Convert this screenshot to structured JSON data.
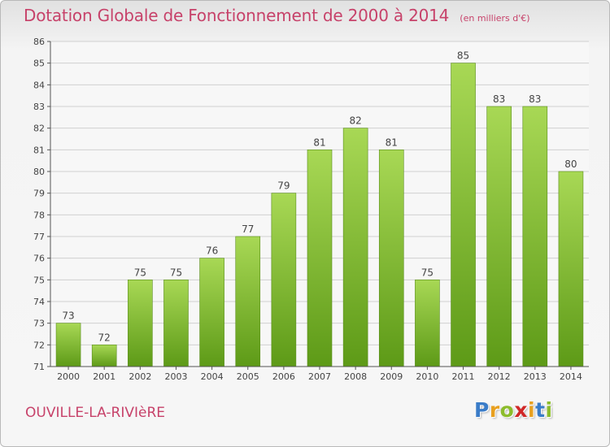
{
  "colors": {
    "bar_top": "#a8d855",
    "bar_bottom": "#5d9a17",
    "title": "#c7426a",
    "axis": "#555555",
    "grid": "#d0d0d0"
  },
  "header": {
    "title": "Dotation Globale de Fonctionnement de 2000 à 2014",
    "subtitle": "(en milliers d'€)"
  },
  "footer": {
    "place": "OUVILLE-LA-RIVIèRE",
    "brand": {
      "name": "Proxiti",
      "letters": [
        "P",
        "r",
        "o",
        "x",
        "i",
        "t",
        "i"
      ],
      "letter_colors": [
        "#3a7cc8",
        "#e8a020",
        "#8cbc2c",
        "#d02828",
        "#e8a020",
        "#3a7cc8",
        "#8cbc2c"
      ]
    }
  },
  "chart_data": {
    "type": "bar",
    "categories": [
      "2000",
      "2001",
      "2002",
      "2003",
      "2004",
      "2005",
      "2006",
      "2007",
      "2008",
      "2009",
      "2010",
      "2011",
      "2012",
      "2013",
      "2014"
    ],
    "values": [
      73,
      72,
      75,
      75,
      76,
      77,
      79,
      81,
      82,
      81,
      75,
      85,
      83,
      83,
      80
    ],
    "title": "Dotation Globale de Fonctionnement de 2000 à 2014",
    "subtitle": "(en milliers d'€)",
    "xlabel": "",
    "ylabel": "",
    "ylim": [
      71,
      86
    ],
    "yticks": [
      71,
      72,
      73,
      74,
      75,
      76,
      77,
      78,
      79,
      80,
      81,
      82,
      83,
      84,
      85,
      86
    ],
    "grid": true,
    "data_labels": true
  }
}
